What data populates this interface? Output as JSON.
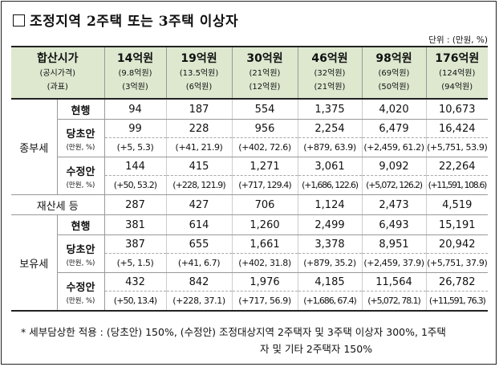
{
  "title": "조정지역 2주택 또는 3주택 이상자",
  "unit": "단위 : (만원, %)",
  "header": {
    "row_label": [
      "합산시가",
      "(공시가격)",
      "(과표)"
    ],
    "columns": [
      {
        "price": "14억원",
        "official": "(9.8억원)",
        "base": "(3억원)"
      },
      {
        "price": "19억원",
        "official": "(13.5억원)",
        "base": "(6억원)"
      },
      {
        "price": "30억원",
        "official": "(21억원)",
        "base": "(12억원)"
      },
      {
        "price": "46억원",
        "official": "(32억원)",
        "base": "(21억원)"
      },
      {
        "price": "98억원",
        "official": "(69억원)",
        "base": "(50억원)"
      },
      {
        "price": "176억원",
        "official": "(124억원)",
        "base": "(94억원)"
      }
    ]
  },
  "sections": {
    "jongbu": {
      "label": "종부세",
      "current_label": "현행",
      "current": [
        "94",
        "187",
        "554",
        "1,375",
        "4,020",
        "10,673"
      ],
      "draft_label": "당초안",
      "draft_unit": "(만원, %)",
      "draft": [
        "99",
        "228",
        "956",
        "2,254",
        "6,479",
        "16,424"
      ],
      "draft_diff": [
        "(+5, 5.3)",
        "(+41, 21.9)",
        "(+402, 72.6)",
        "(+879, 63.9)",
        "(+2,459, 61.2)",
        "(+5,751, 53.9)"
      ],
      "revised_label": "수정안",
      "revised_unit": "(만원, %)",
      "revised": [
        "144",
        "415",
        "1,271",
        "3,061",
        "9,092",
        "22,264"
      ],
      "revised_diff": [
        "(+50, 53.2)",
        "(+228, 121.9)",
        "(+717, 129.4)",
        "(+1,686, 122.6)",
        "(+5,072, 126.2)",
        "(+11,591, 108.6)"
      ]
    },
    "property": {
      "label": "재산세 등",
      "values": [
        "287",
        "427",
        "706",
        "1,124",
        "2,473",
        "4,519"
      ]
    },
    "holding": {
      "label": "보유세",
      "current_label": "현행",
      "current": [
        "381",
        "614",
        "1,260",
        "2,499",
        "6,493",
        "15,191"
      ],
      "draft_label": "당초안",
      "draft_unit": "(만원, %)",
      "draft": [
        "387",
        "655",
        "1,661",
        "3,378",
        "8,951",
        "20,942"
      ],
      "draft_diff": [
        "(+5, 1.5)",
        "(+41, 6.7)",
        "(+402, 31.8)",
        "(+879, 35.2)",
        "(+2,459, 37.9)",
        "(+5,751, 37.9)"
      ],
      "revised_label": "수정안",
      "revised_unit": "(만원, %)",
      "revised": [
        "432",
        "842",
        "1,976",
        "4,185",
        "11,564",
        "26,782"
      ],
      "revised_diff": [
        "(+50, 13.4)",
        "(+228, 37.1)",
        "(+717, 56.9)",
        "(+1,686, 67.4)",
        "(+5,072, 78.1)",
        "(+11,591, 76.3)"
      ]
    }
  },
  "note": {
    "line1": "*  세부담상한 적용 : (당초안) 150%, (수정안) 조정대상지역 2주택자 및 3주택 이상자 300%, 1주택",
    "line2": "자 및 기타 2주택자 150%"
  }
}
